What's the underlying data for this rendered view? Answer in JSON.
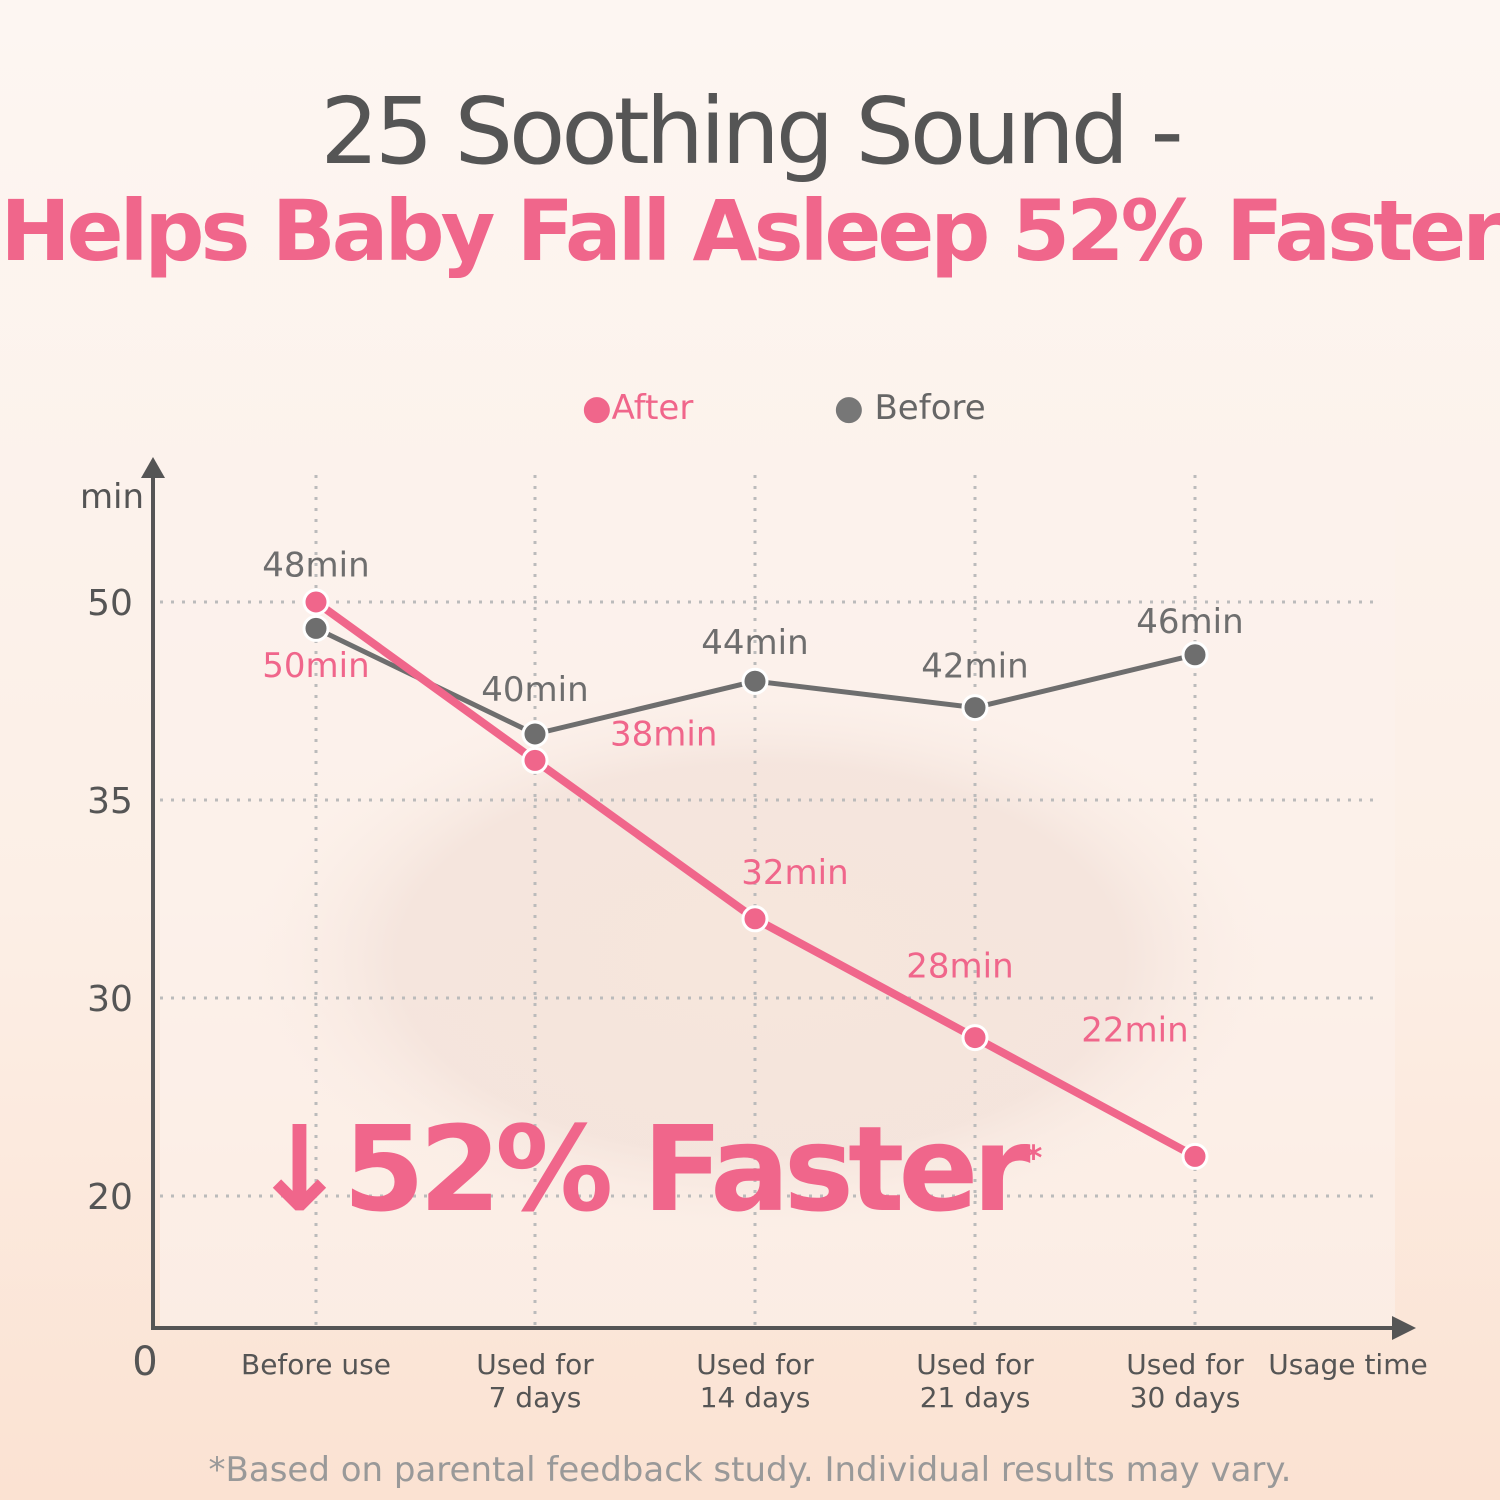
{
  "title_line1": "25 Soothing Sound -",
  "title_line2": "Helps Baby Fall Asleep 52% Faster",
  "callout": "↓52% Faster",
  "callout_mark": "*",
  "footnote": "*Based on parental feedback study. Individual results may vary.",
  "chart_data": {
    "type": "line",
    "ylabel": "min",
    "xlabel": "Usage time",
    "origin_label": "0",
    "categories": [
      "Before use",
      "Used for\n7 days",
      "Used for\n14 days",
      "Used for\n21 days",
      "Used for\n30 days"
    ],
    "yticks": [
      50,
      35,
      30,
      20
    ],
    "grid": true,
    "legend_placement": "top",
    "series": [
      {
        "name": "After",
        "color": "#f0668b",
        "values": [
          50,
          38,
          32,
          28,
          22
        ],
        "labels": [
          "50min",
          "38min",
          "32min",
          "28min",
          "22min"
        ]
      },
      {
        "name": "Before",
        "color": "#6e6e6e",
        "values": [
          48,
          40,
          44,
          42,
          46
        ],
        "labels": [
          "48min",
          "40min",
          "44min",
          "42min",
          "46min"
        ]
      }
    ]
  }
}
